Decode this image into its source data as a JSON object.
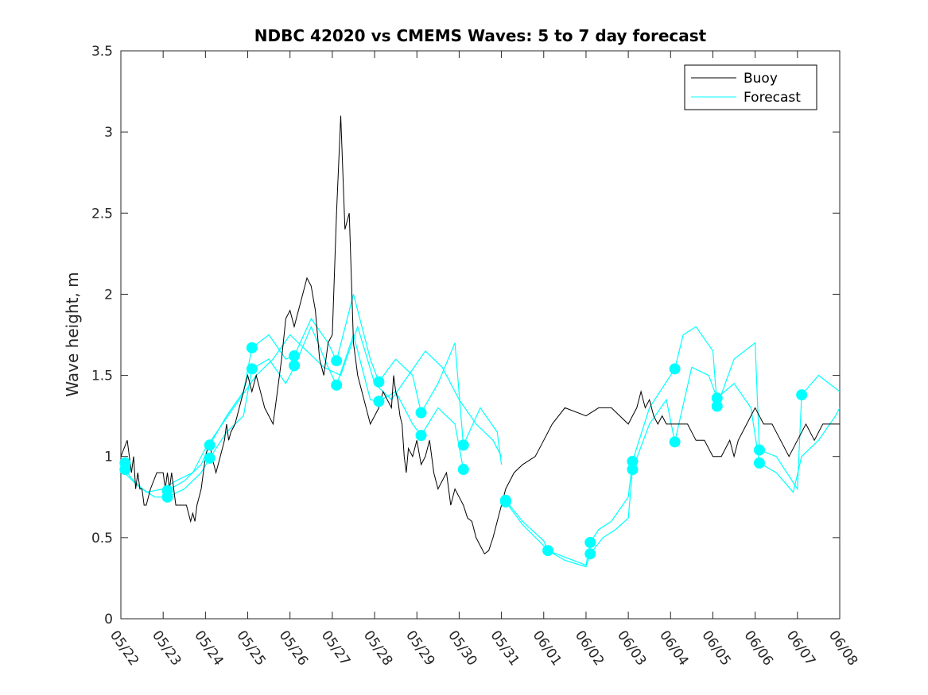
{
  "chart_data": {
    "type": "line",
    "title": "NDBC 42020 vs CMEMS Waves: 5 to 7 day forecast",
    "xlabel": "",
    "ylabel": "Wave height, m",
    "xlim": [
      0,
      17
    ],
    "ylim": [
      0,
      3.5
    ],
    "x_ticks": [
      "05/22",
      "05/23",
      "05/24",
      "05/25",
      "05/26",
      "05/27",
      "05/28",
      "05/29",
      "05/30",
      "05/31",
      "06/01",
      "06/02",
      "06/03",
      "06/04",
      "06/05",
      "06/06",
      "06/07",
      "06/08"
    ],
    "y_ticks": [
      0,
      0.5,
      1,
      1.5,
      2,
      2.5,
      3,
      3.5
    ],
    "grid": false,
    "legend_position": "top-right",
    "colors": {
      "buoy": "#000000",
      "forecast": "#00ffff"
    },
    "legend": [
      {
        "label": "Buoy",
        "color": "#000000"
      },
      {
        "label": "Forecast",
        "color": "#00ffff"
      }
    ],
    "series": [
      {
        "name": "Buoy",
        "x": [
          0.0,
          0.15,
          0.25,
          0.3,
          0.35,
          0.4,
          0.45,
          0.5,
          0.55,
          0.6,
          0.7,
          0.85,
          1.0,
          1.05,
          1.1,
          1.15,
          1.2,
          1.3,
          1.45,
          1.55,
          1.65,
          1.7,
          1.75,
          1.8,
          1.85,
          1.9,
          1.95,
          2.0,
          2.05,
          2.1,
          2.15,
          2.25,
          2.35,
          2.45,
          2.5,
          2.55,
          2.6,
          2.7,
          2.8,
          2.9,
          3.0,
          3.1,
          3.2,
          3.3,
          3.4,
          3.5,
          3.6,
          3.7,
          3.8,
          3.9,
          4.0,
          4.1,
          4.2,
          4.3,
          4.4,
          4.5,
          4.6,
          4.7,
          4.8,
          4.9,
          5.0,
          5.1,
          5.2,
          5.3,
          5.4,
          5.5,
          5.6,
          5.7,
          5.8,
          5.9,
          6.0,
          6.1,
          6.2,
          6.3,
          6.4,
          6.45,
          6.5,
          6.55,
          6.6,
          6.65,
          6.7,
          6.75,
          6.8,
          6.9,
          7.0,
          7.1,
          7.2,
          7.3,
          7.4,
          7.5,
          7.6,
          7.7,
          7.8,
          7.9,
          8.0,
          8.1,
          8.2,
          8.3,
          8.4,
          8.5,
          8.6,
          8.7,
          8.8,
          8.9,
          9.0,
          9.1,
          9.2,
          9.3,
          9.5,
          9.8,
          10.0,
          10.2,
          10.5,
          11.0,
          11.3,
          11.6,
          12.0,
          12.1,
          12.2,
          12.3,
          12.4,
          12.5,
          12.6,
          12.7,
          12.8,
          12.9,
          13.0,
          13.1,
          13.2,
          13.4,
          13.6,
          13.8,
          14.0,
          14.2,
          14.4,
          14.5,
          14.6,
          14.8,
          15.0,
          15.2,
          15.4,
          15.6,
          15.8,
          16.0,
          16.2,
          16.4,
          16.6,
          16.8,
          17.0
        ],
        "values": [
          1.0,
          1.1,
          0.9,
          1.0,
          0.8,
          0.9,
          0.8,
          0.8,
          0.7,
          0.7,
          0.8,
          0.9,
          0.9,
          0.8,
          0.9,
          0.8,
          0.9,
          0.7,
          0.7,
          0.7,
          0.6,
          0.65,
          0.6,
          0.7,
          0.75,
          0.8,
          0.9,
          1.0,
          1.05,
          1.1,
          1.0,
          0.9,
          1.0,
          1.1,
          1.2,
          1.1,
          1.15,
          1.2,
          1.3,
          1.4,
          1.5,
          1.4,
          1.5,
          1.4,
          1.3,
          1.25,
          1.2,
          1.4,
          1.6,
          1.85,
          1.9,
          1.8,
          1.9,
          2.0,
          2.1,
          2.05,
          1.9,
          1.6,
          1.5,
          1.7,
          1.75,
          2.5,
          3.1,
          2.4,
          2.5,
          1.7,
          1.5,
          1.4,
          1.3,
          1.2,
          1.25,
          1.3,
          1.4,
          1.35,
          1.3,
          1.5,
          1.4,
          1.35,
          1.25,
          1.2,
          1.0,
          0.9,
          1.05,
          1.0,
          1.1,
          0.95,
          1.0,
          1.1,
          0.9,
          0.8,
          0.85,
          0.9,
          0.7,
          0.8,
          0.75,
          0.7,
          0.62,
          0.6,
          0.5,
          0.45,
          0.4,
          0.42,
          0.5,
          0.6,
          0.7,
          0.8,
          0.85,
          0.9,
          0.95,
          1.0,
          1.1,
          1.2,
          1.3,
          1.25,
          1.3,
          1.3,
          1.2,
          1.25,
          1.3,
          1.4,
          1.3,
          1.35,
          1.25,
          1.2,
          1.25,
          1.2,
          1.2,
          1.2,
          1.2,
          1.2,
          1.1,
          1.1,
          1.0,
          1.0,
          1.1,
          1.0,
          1.1,
          1.2,
          1.3,
          1.2,
          1.2,
          1.1,
          1.0,
          1.1,
          1.2,
          1.1,
          1.2,
          1.2,
          1.2
        ]
      },
      {
        "name": "Forecast",
        "x": [
          0.0,
          0.3,
          0.6,
          1.0,
          1.3,
          1.7,
          2.0,
          2.4,
          2.8,
          3.2,
          3.6,
          4.0,
          4.4,
          4.8,
          5.2,
          5.6,
          6.0,
          6.4,
          6.8,
          7.2,
          7.6,
          8.0,
          8.4,
          8.8,
          9.0
        ],
        "values": [
          0.95,
          0.85,
          0.78,
          0.8,
          0.85,
          0.9,
          1.05,
          1.2,
          1.35,
          1.5,
          1.6,
          1.75,
          1.65,
          1.55,
          1.5,
          1.8,
          1.45,
          1.35,
          1.5,
          1.65,
          1.55,
          1.35,
          1.2,
          1.1,
          1.0
        ]
      },
      {
        "name": "",
        "x": [
          0.0,
          0.4,
          0.8,
          1.1,
          1.5,
          1.9,
          2.1,
          2.5,
          2.9,
          3.1,
          3.5,
          3.9,
          4.1,
          4.5,
          4.9,
          5.1,
          5.5,
          5.9,
          6.1,
          6.5,
          6.9,
          7.1,
          7.5,
          7.9,
          8.1
        ],
        "values": [
          0.92,
          0.82,
          0.75,
          0.75,
          0.8,
          0.9,
          0.99,
          1.15,
          1.25,
          1.54,
          1.6,
          1.45,
          1.55,
          1.8,
          1.55,
          1.44,
          1.75,
          1.35,
          1.34,
          1.4,
          1.2,
          1.13,
          1.3,
          1.2,
          0.92
        ]
      },
      {
        "name": "",
        "x": [
          1.1,
          1.5,
          1.9,
          2.1,
          2.5,
          2.9,
          3.1,
          3.5,
          3.9,
          4.1,
          4.5,
          4.9,
          5.1,
          5.5,
          5.9,
          6.1,
          6.5,
          6.9,
          7.1,
          7.5,
          7.9,
          8.1,
          8.5,
          8.9,
          9.0
        ],
        "values": [
          0.79,
          0.85,
          0.95,
          1.07,
          1.25,
          1.4,
          1.67,
          1.75,
          1.6,
          1.62,
          1.85,
          1.7,
          1.59,
          2.0,
          1.6,
          1.46,
          1.6,
          1.5,
          1.27,
          1.45,
          1.7,
          1.07,
          1.3,
          1.15,
          0.95
        ]
      },
      {
        "name": "",
        "x": [
          9.1,
          9.5,
          10.0,
          10.1,
          10.5,
          11.0,
          11.1,
          11.3,
          11.6,
          12.0,
          12.1,
          12.5,
          13.0,
          13.1,
          13.3,
          13.6,
          14.0,
          14.1,
          14.5,
          15.0,
          15.1,
          15.5,
          16.0,
          16.1,
          16.5,
          17.0
        ],
        "values": [
          0.73,
          0.6,
          0.48,
          0.42,
          0.38,
          0.33,
          0.47,
          0.55,
          0.6,
          0.75,
          0.97,
          1.3,
          1.5,
          1.54,
          1.75,
          1.8,
          1.65,
          1.31,
          1.6,
          1.7,
          1.04,
          1.0,
          0.8,
          1.38,
          1.5,
          1.4
        ]
      },
      {
        "name": "",
        "x": [
          9.1,
          9.5,
          10.0,
          10.1,
          10.5,
          11.0,
          11.1,
          11.4,
          11.7,
          12.0,
          12.1,
          12.5,
          12.9,
          13.1,
          13.5,
          13.9,
          14.1,
          14.5,
          14.9,
          15.1,
          15.5,
          15.9,
          16.1,
          16.5,
          16.9,
          17.0
        ],
        "values": [
          0.72,
          0.58,
          0.45,
          0.42,
          0.36,
          0.32,
          0.4,
          0.5,
          0.55,
          0.62,
          0.92,
          1.2,
          1.35,
          1.09,
          1.55,
          1.5,
          1.36,
          1.45,
          1.3,
          0.96,
          0.9,
          0.78,
          1.0,
          1.1,
          1.25,
          1.3
        ]
      }
    ],
    "markers": {
      "x": [
        0.1,
        0.1,
        1.1,
        1.1,
        2.1,
        2.1,
        3.1,
        3.1,
        4.1,
        4.1,
        5.1,
        5.1,
        6.1,
        6.1,
        7.1,
        7.1,
        8.1,
        8.1,
        9.1,
        9.1,
        10.1,
        11.1,
        11.1,
        12.1,
        12.1,
        13.1,
        13.1,
        14.1,
        14.1,
        15.1,
        15.1,
        16.1
      ],
      "values": [
        0.96,
        0.92,
        0.79,
        0.75,
        1.07,
        0.99,
        1.67,
        1.54,
        1.62,
        1.56,
        1.59,
        1.44,
        1.46,
        1.34,
        1.27,
        1.13,
        1.07,
        0.92,
        0.73,
        0.72,
        0.42,
        0.47,
        0.4,
        0.97,
        0.92,
        1.54,
        1.09,
        1.36,
        1.31,
        1.04,
        0.96,
        1.38
      ]
    }
  }
}
